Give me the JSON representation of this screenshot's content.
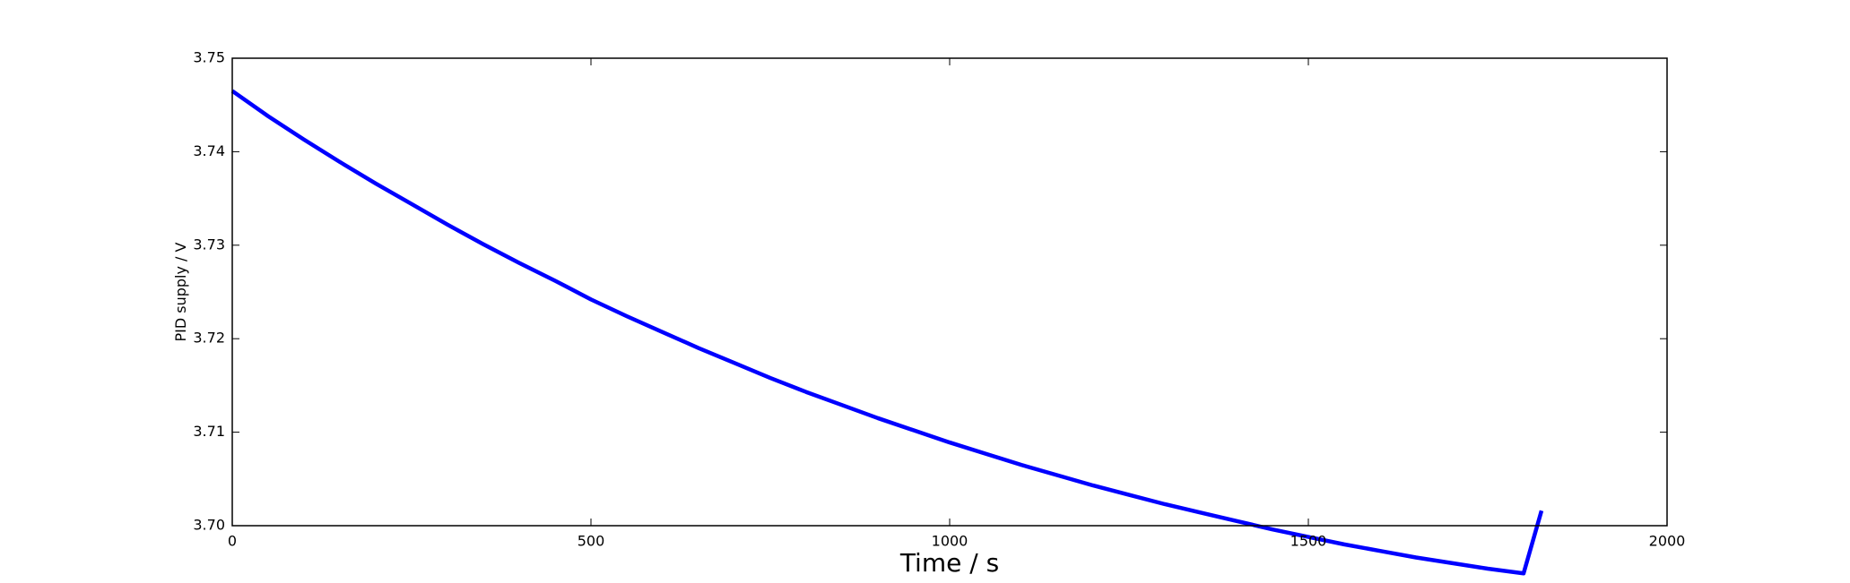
{
  "chart_data": {
    "type": "line",
    "title": "",
    "xlabel": "Time / s",
    "ylabel": "PID supply / V",
    "xlim": [
      0,
      2000
    ],
    "ylim": [
      3.7,
      3.75
    ],
    "x_ticks": [
      0,
      500,
      1000,
      1500,
      2000
    ],
    "x_tick_labels": [
      "0",
      "500",
      "1000",
      "1500",
      "2000"
    ],
    "y_ticks": [
      3.7,
      3.71,
      3.72,
      3.73,
      3.74,
      3.75
    ],
    "y_tick_labels": [
      "3.70",
      "3.71",
      "3.72",
      "3.73",
      "3.74",
      "3.75"
    ],
    "grid": false,
    "legend": "none",
    "series": [
      {
        "color": "#0000ff",
        "x": [
          0,
          50,
          100,
          150,
          200,
          250,
          300,
          350,
          400,
          450,
          500,
          550,
          600,
          650,
          700,
          750,
          800,
          850,
          900,
          950,
          1000,
          1050,
          1100,
          1150,
          1200,
          1250,
          1300,
          1350,
          1400,
          1450,
          1500,
          1550,
          1600,
          1650,
          1700,
          1750,
          1800,
          1825
        ],
        "y": [
          3.7465,
          3.7438,
          3.7413,
          3.7389,
          3.7366,
          3.7344,
          3.7322,
          3.7301,
          3.7281,
          3.7262,
          3.7242,
          3.7224,
          3.7207,
          3.719,
          3.7174,
          3.7158,
          3.7143,
          3.7129,
          3.7115,
          3.7102,
          3.7089,
          3.7077,
          3.7065,
          3.7054,
          3.7043,
          3.7033,
          3.7023,
          3.7014,
          3.7005,
          3.6996,
          3.6988,
          3.698,
          3.6973,
          3.6966,
          3.696,
          3.6954,
          3.6949,
          3.7016
        ]
      }
    ]
  }
}
